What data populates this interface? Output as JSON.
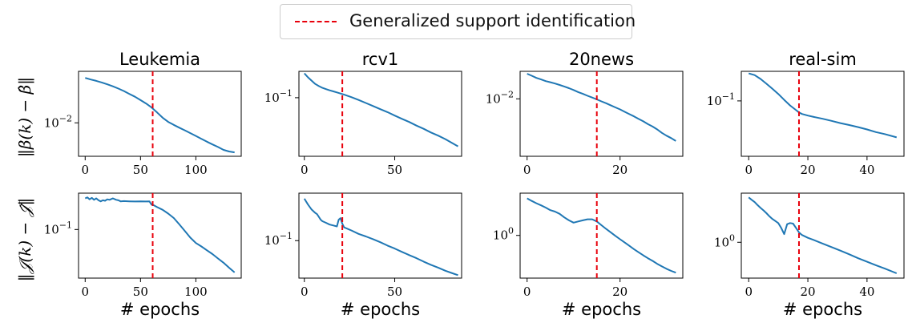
{
  "legend": {
    "label": "Generalized support identification",
    "color": "#e8000b",
    "placement": "top-center"
  },
  "ylabel_top": "‖β(k) − β̂‖",
  "ylabel_bottom": "‖𝒥(k) − 𝒥̂‖",
  "line_color": "#1f77b4",
  "chart_data": [
    {
      "type": "line",
      "dataset": "Leukemia",
      "row": "top",
      "title": "Leukemia",
      "xlabel": "",
      "log_y": true,
      "xlim": [
        -6,
        141
      ],
      "ylim": [
        0.0018,
        0.14
      ],
      "xticks": [
        0,
        50,
        100
      ],
      "xticklabels": [
        "0",
        "50",
        "100"
      ],
      "yticks": [
        0.01
      ],
      "yticklabels": [
        "10−2"
      ],
      "support_epoch": 61,
      "x": [
        0,
        5,
        10,
        15,
        20,
        25,
        30,
        35,
        40,
        45,
        50,
        55,
        60,
        65,
        70,
        75,
        80,
        85,
        90,
        95,
        100,
        105,
        110,
        115,
        120,
        125,
        130,
        135
      ],
      "y": [
        0.1,
        0.092,
        0.086,
        0.079,
        0.072,
        0.065,
        0.058,
        0.051,
        0.044,
        0.038,
        0.032,
        0.027,
        0.022,
        0.017,
        0.013,
        0.0105,
        0.009,
        0.0078,
        0.0068,
        0.0059,
        0.0051,
        0.0044,
        0.0038,
        0.0033,
        0.0029,
        0.0025,
        0.0023,
        0.0022
      ]
    },
    {
      "type": "line",
      "dataset": "rcv1",
      "row": "top",
      "title": "rcv1",
      "xlabel": "",
      "log_y": true,
      "xlim": [
        -3,
        87
      ],
      "ylim": [
        0.011,
        0.27
      ],
      "xticks": [
        0,
        50
      ],
      "xticklabels": [
        "0",
        "50"
      ],
      "yticks": [
        0.1
      ],
      "yticklabels": [
        "10−1"
      ],
      "support_epoch": 21,
      "x": [
        0,
        2,
        4,
        6,
        8,
        10,
        12,
        14,
        16,
        18,
        20,
        22,
        26,
        30,
        34,
        38,
        42,
        46,
        50,
        54,
        58,
        62,
        66,
        70,
        74,
        78,
        82,
        85
      ],
      "y": [
        0.25,
        0.215,
        0.19,
        0.168,
        0.155,
        0.145,
        0.138,
        0.132,
        0.127,
        0.122,
        0.117,
        0.112,
        0.102,
        0.092,
        0.082,
        0.073,
        0.065,
        0.058,
        0.051,
        0.045,
        0.04,
        0.035,
        0.031,
        0.027,
        0.024,
        0.021,
        0.018,
        0.016
      ]
    },
    {
      "type": "line",
      "dataset": "20news",
      "row": "top",
      "title": "20news",
      "xlabel": "",
      "log_y": true,
      "xlim": [
        -1.5,
        33.5
      ],
      "ylim": [
        0.00032,
        0.052
      ],
      "xticks": [
        0,
        20
      ],
      "xticklabels": [
        "0",
        "20"
      ],
      "yticks": [
        0.01
      ],
      "yticklabels": [
        "10−2"
      ],
      "support_epoch": 15,
      "x": [
        0,
        1,
        2,
        3,
        4,
        5,
        6,
        7,
        8,
        9,
        10,
        11,
        12,
        13,
        14,
        15,
        16,
        17,
        18,
        19,
        20,
        21,
        22,
        23,
        24,
        25,
        26,
        27,
        28,
        29,
        30,
        31,
        32
      ],
      "y": [
        0.045,
        0.04,
        0.035,
        0.032,
        0.029,
        0.027,
        0.025,
        0.023,
        0.021,
        0.019,
        0.017,
        0.015,
        0.0135,
        0.012,
        0.0108,
        0.0097,
        0.0086,
        0.0077,
        0.0068,
        0.006,
        0.0053,
        0.0046,
        0.004,
        0.0035,
        0.003,
        0.0026,
        0.0022,
        0.0019,
        0.0016,
        0.0013,
        0.0011,
        0.00095,
        0.0008
      ]
    },
    {
      "type": "line",
      "dataset": "real-sim",
      "row": "top",
      "title": "real-sim",
      "xlabel": "",
      "log_y": true,
      "xlim": [
        -2.5,
        52.5
      ],
      "ylim": [
        0.0068,
        0.42
      ],
      "xticks": [
        0,
        20,
        40
      ],
      "xticklabels": [
        "0",
        "20",
        "40"
      ],
      "yticks": [
        0.1
      ],
      "yticklabels": [
        "10−1"
      ],
      "support_epoch": 17,
      "x": [
        0,
        2,
        4,
        6,
        8,
        10,
        12,
        14,
        16,
        17,
        18,
        20,
        22,
        25,
        28,
        31,
        34,
        37,
        40,
        43,
        46,
        50
      ],
      "y": [
        0.38,
        0.35,
        0.29,
        0.23,
        0.18,
        0.14,
        0.105,
        0.08,
        0.064,
        0.057,
        0.053,
        0.049,
        0.046,
        0.042,
        0.038,
        0.034,
        0.031,
        0.028,
        0.025,
        0.022,
        0.02,
        0.017
      ]
    },
    {
      "type": "line",
      "dataset": "Leukemia",
      "row": "bottom",
      "title": "",
      "xlabel": "# epochs",
      "log_y": true,
      "xlim": [
        -6,
        141
      ],
      "ylim": [
        0.018,
        0.36
      ],
      "xticks": [
        0,
        50,
        100
      ],
      "xticklabels": [
        "0",
        "50",
        "100"
      ],
      "yticks": [
        0.1
      ],
      "yticklabels": [
        "10−1"
      ],
      "support_epoch": 61,
      "x": [
        0,
        2,
        4,
        6,
        8,
        10,
        12,
        14,
        16,
        18,
        20,
        22,
        25,
        28,
        30,
        32,
        35,
        40,
        45,
        50,
        55,
        58,
        60,
        62,
        65,
        70,
        75,
        80,
        85,
        90,
        95,
        100,
        105,
        110,
        115,
        120,
        125,
        130,
        135
      ],
      "y": [
        0.3,
        0.31,
        0.29,
        0.305,
        0.285,
        0.3,
        0.28,
        0.27,
        0.28,
        0.275,
        0.29,
        0.285,
        0.3,
        0.285,
        0.28,
        0.27,
        0.272,
        0.27,
        0.268,
        0.27,
        0.268,
        0.27,
        0.24,
        0.235,
        0.22,
        0.2,
        0.175,
        0.15,
        0.12,
        0.095,
        0.075,
        0.062,
        0.055,
        0.048,
        0.042,
        0.036,
        0.031,
        0.026,
        0.022
      ]
    },
    {
      "type": "line",
      "dataset": "rcv1",
      "row": "bottom",
      "title": "",
      "xlabel": "# epochs",
      "log_y": true,
      "xlim": [
        -3,
        87
      ],
      "ylim": [
        0.029,
        0.48
      ],
      "xticks": [
        0,
        50
      ],
      "xticklabels": [
        "0",
        "50"
      ],
      "yticks": [
        0.1
      ],
      "yticklabels": [
        "10−1"
      ],
      "support_epoch": 21,
      "x": [
        0,
        2,
        4,
        6,
        7,
        8,
        9,
        10,
        12,
        14,
        16,
        18,
        19,
        20,
        21,
        22,
        26,
        30,
        34,
        38,
        42,
        46,
        50,
        54,
        58,
        62,
        66,
        70,
        74,
        78,
        82,
        85
      ],
      "y": [
        0.4,
        0.33,
        0.28,
        0.25,
        0.24,
        0.22,
        0.2,
        0.19,
        0.18,
        0.17,
        0.165,
        0.16,
        0.2,
        0.21,
        0.175,
        0.155,
        0.14,
        0.125,
        0.115,
        0.105,
        0.095,
        0.085,
        0.077,
        0.069,
        0.062,
        0.056,
        0.05,
        0.045,
        0.041,
        0.037,
        0.034,
        0.032
      ]
    },
    {
      "type": "line",
      "dataset": "20news",
      "row": "bottom",
      "title": "",
      "xlabel": "# epochs",
      "log_y": true,
      "xlim": [
        -1.5,
        33.5
      ],
      "ylim": [
        0.14,
        7.0
      ],
      "xticks": [
        0,
        20
      ],
      "xticklabels": [
        "0",
        "20"
      ],
      "yticks": [
        1
      ],
      "yticklabels": [
        "100"
      ],
      "support_epoch": 15,
      "x": [
        0,
        1,
        2,
        3,
        4,
        5,
        6,
        7,
        8,
        9,
        10,
        11,
        12,
        13,
        14,
        15,
        16,
        17,
        18,
        19,
        20,
        21,
        22,
        23,
        24,
        25,
        26,
        27,
        28,
        29,
        30,
        31,
        32
      ],
      "y": [
        5.5,
        4.9,
        4.4,
        4.0,
        3.6,
        3.2,
        3.0,
        2.7,
        2.3,
        2.0,
        1.8,
        1.9,
        2.0,
        2.1,
        2.1,
        1.9,
        1.6,
        1.35,
        1.15,
        0.98,
        0.84,
        0.72,
        0.62,
        0.53,
        0.46,
        0.4,
        0.35,
        0.31,
        0.27,
        0.24,
        0.215,
        0.195,
        0.18
      ]
    },
    {
      "type": "line",
      "dataset": "real-sim",
      "row": "bottom",
      "title": "",
      "xlabel": "# epochs",
      "log_y": true,
      "xlim": [
        -2.5,
        52.5
      ],
      "ylim": [
        0.23,
        7.5
      ],
      "xticks": [
        0,
        20,
        40
      ],
      "xticklabels": [
        "0",
        "20",
        "40"
      ],
      "yticks": [
        1
      ],
      "yticklabels": [
        "100"
      ],
      "support_epoch": 17,
      "x": [
        0,
        1,
        2,
        3,
        4,
        5,
        6,
        7,
        8,
        9,
        10,
        11,
        12,
        13,
        14,
        15,
        16,
        17,
        18,
        20,
        22,
        25,
        28,
        31,
        34,
        37,
        40,
        43,
        46,
        50
      ],
      "y": [
        6.3,
        5.7,
        5.2,
        4.6,
        4.1,
        3.7,
        3.3,
        2.9,
        2.6,
        2.4,
        2.2,
        1.8,
        1.4,
        2.1,
        2.2,
        2.15,
        1.8,
        1.5,
        1.35,
        1.2,
        1.1,
        0.95,
        0.82,
        0.71,
        0.61,
        0.52,
        0.45,
        0.39,
        0.34,
        0.28
      ]
    }
  ]
}
